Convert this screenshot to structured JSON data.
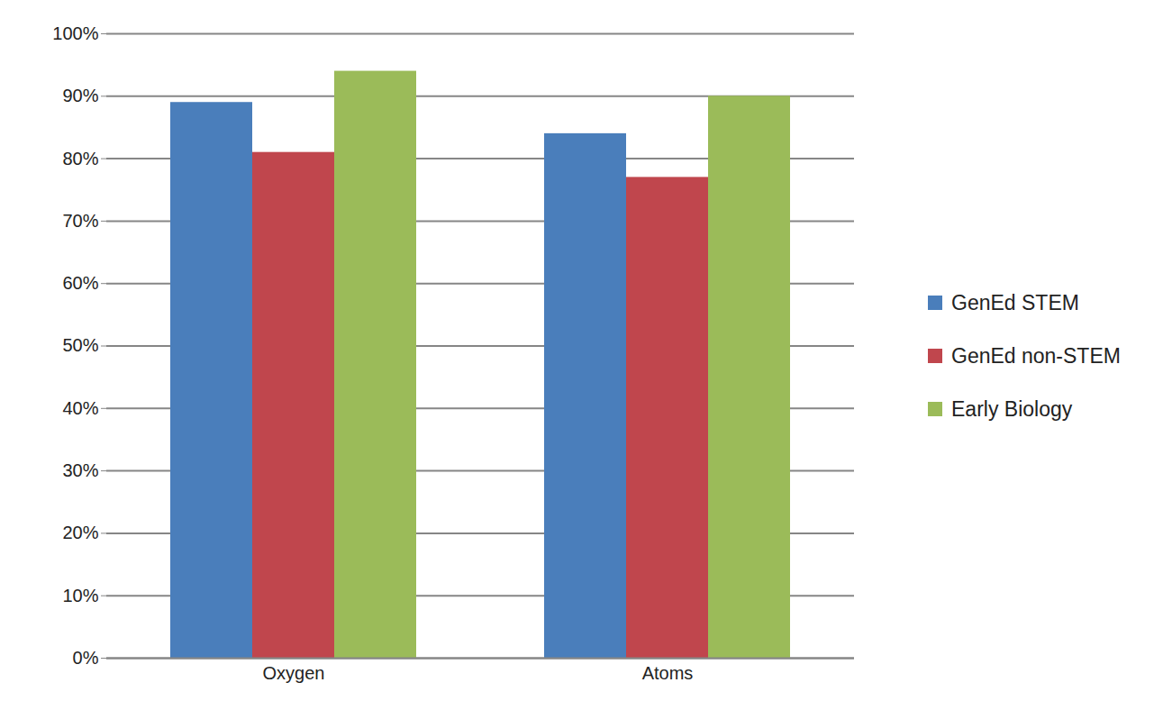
{
  "chart_data": {
    "type": "bar",
    "categories": [
      "Oxygen",
      "Atoms"
    ],
    "series": [
      {
        "name": "GenEd STEM",
        "color": "#4a7ebb",
        "values": [
          89,
          84
        ]
      },
      {
        "name": "GenEd non-STEM",
        "color": "#c0464d",
        "values": [
          81,
          77
        ]
      },
      {
        "name": "Early Biology",
        "color": "#9bbb59",
        "values": [
          94,
          90
        ]
      }
    ],
    "ylim": [
      0,
      100
    ],
    "yticks": [
      {
        "value": 0,
        "label": "0%"
      },
      {
        "value": 10,
        "label": "10%"
      },
      {
        "value": 20,
        "label": "20%"
      },
      {
        "value": 30,
        "label": "30%"
      },
      {
        "value": 40,
        "label": "40%"
      },
      {
        "value": 50,
        "label": "50%"
      },
      {
        "value": 60,
        "label": "60%"
      },
      {
        "value": 70,
        "label": "70%"
      },
      {
        "value": 80,
        "label": "80%"
      },
      {
        "value": 90,
        "label": "90%"
      },
      {
        "value": 100,
        "label": "100%"
      }
    ],
    "grid": true,
    "legend": "right"
  }
}
